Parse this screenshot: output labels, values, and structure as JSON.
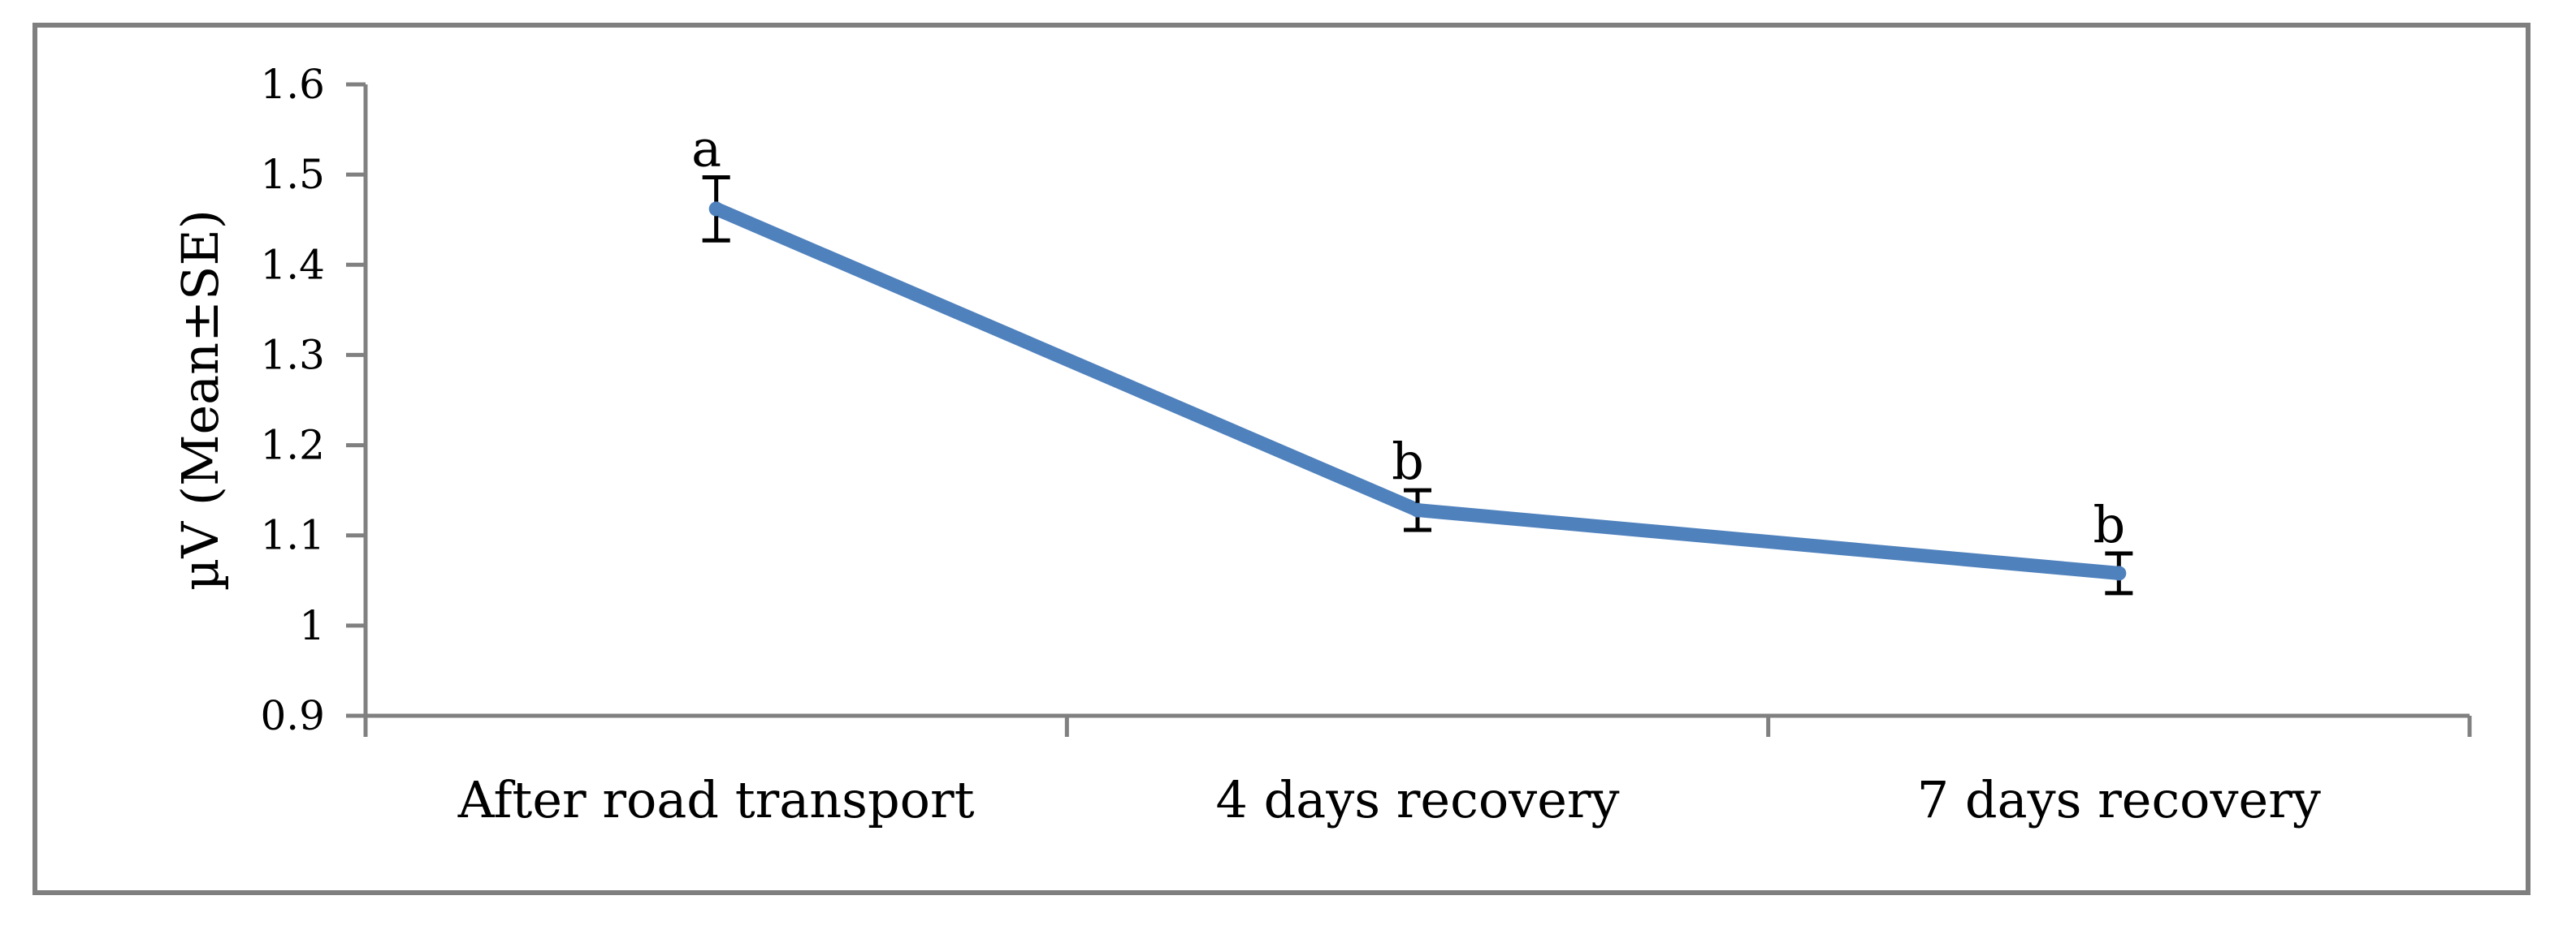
{
  "chart_data": {
    "type": "line",
    "title": "",
    "xlabel": "",
    "ylabel": "µV (Mean±SE)",
    "ylim": [
      0.9,
      1.6
    ],
    "yticks": [
      "0.9",
      "1",
      "1.1",
      "1.2",
      "1.3",
      "1.4",
      "1.5",
      "1.6"
    ],
    "ytick_values": [
      0.9,
      1.0,
      1.1,
      1.2,
      1.3,
      1.4,
      1.5,
      1.6
    ],
    "categories": [
      "After road transport",
      "4 days recovery",
      "7 days recovery"
    ],
    "series": [
      {
        "values": [
          1.462,
          1.128,
          1.058
        ],
        "se": [
          0.035,
          0.022,
          0.022
        ],
        "significance": [
          "a",
          "b",
          "b"
        ]
      }
    ],
    "grid": false,
    "legend": "none",
    "colors": {
      "line": "#4f81bd",
      "axis": "#808080",
      "error_bar": "#000000",
      "frame": "#7f7f7f"
    }
  }
}
